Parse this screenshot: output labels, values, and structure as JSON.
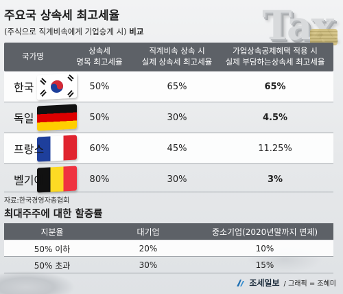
{
  "title": "주요국 상속세 최고세율",
  "subtitle_prefix": "(주식으로 직계비속에게 기업승계 시) ",
  "subtitle_bold": "비교",
  "deco_text": "Tax",
  "table1": {
    "headers": [
      "국가명",
      "상속세\n명목 최고세율",
      "직계비속 상속 시\n실제 상속세 최고세율",
      "가업상속공제혜택 적용 시\n실제 부담하는상속세 최고세율"
    ],
    "rows": [
      {
        "country": "한국",
        "flag": "korea",
        "nominal": "50%",
        "direct": "65%",
        "with_relief": "65%"
      },
      {
        "country": "독일",
        "flag": "germany",
        "nominal": "50%",
        "direct": "30%",
        "with_relief": "4.5%"
      },
      {
        "country": "프랑스",
        "flag": "france",
        "nominal": "60%",
        "direct": "45%",
        "with_relief": "11.25%"
      },
      {
        "country": "벨기에",
        "flag": "belgium",
        "nominal": "80%",
        "direct": "30%",
        "with_relief": "3%"
      }
    ]
  },
  "source": "자료:한국경영자총협회",
  "title2": "최대주주에 대한 할증률",
  "table2": {
    "headers": [
      "지분율",
      "대기업",
      "중소기업(2020년말까지 면제)"
    ],
    "rows": [
      {
        "share": "50% 이하",
        "large": "20%",
        "sme": "10%"
      },
      {
        "share": "50% 초과",
        "large": "30%",
        "sme": "15%"
      }
    ]
  },
  "footer": {
    "brand": "조세일보",
    "credit": "/ 그래픽 = 조혜미"
  },
  "colors": {
    "header_bg": "#5d6167",
    "row_bg": "#ffffff",
    "page_bg": "#e9ebec"
  }
}
